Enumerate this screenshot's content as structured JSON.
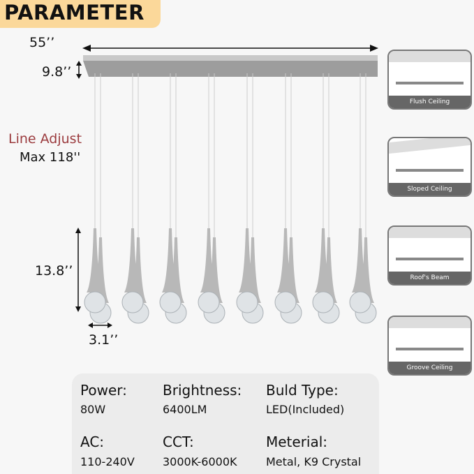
{
  "title": "PARAMETER",
  "dimensions": {
    "width": "55’’",
    "canopy_height": "9.8’’",
    "pendant_height": "13.8’’",
    "pendant_diameter": "3.1’’"
  },
  "line_adjust": {
    "label": "Line Adjust",
    "value": "Max 118''",
    "color": "#9b3b3e"
  },
  "installation_types": [
    "Flush Ceiling",
    "Sloped Ceiling",
    "Roof's Beam",
    "Groove Ceiling"
  ],
  "specs": [
    {
      "key": "Power:",
      "value": "80W"
    },
    {
      "key": "Brightness:",
      "value": "6400LM"
    },
    {
      "key": "Buld Type:",
      "value": "LED(Included)"
    },
    {
      "key": "AC:",
      "value": "110-240V"
    },
    {
      "key": "CCT:",
      "value": "3000K-6000K"
    },
    {
      "key": "Meterial:",
      "value": "Metal, K9 Crystal"
    }
  ],
  "colors": {
    "badge": "#fbd89a",
    "accent_text": "#9b3b3e"
  }
}
